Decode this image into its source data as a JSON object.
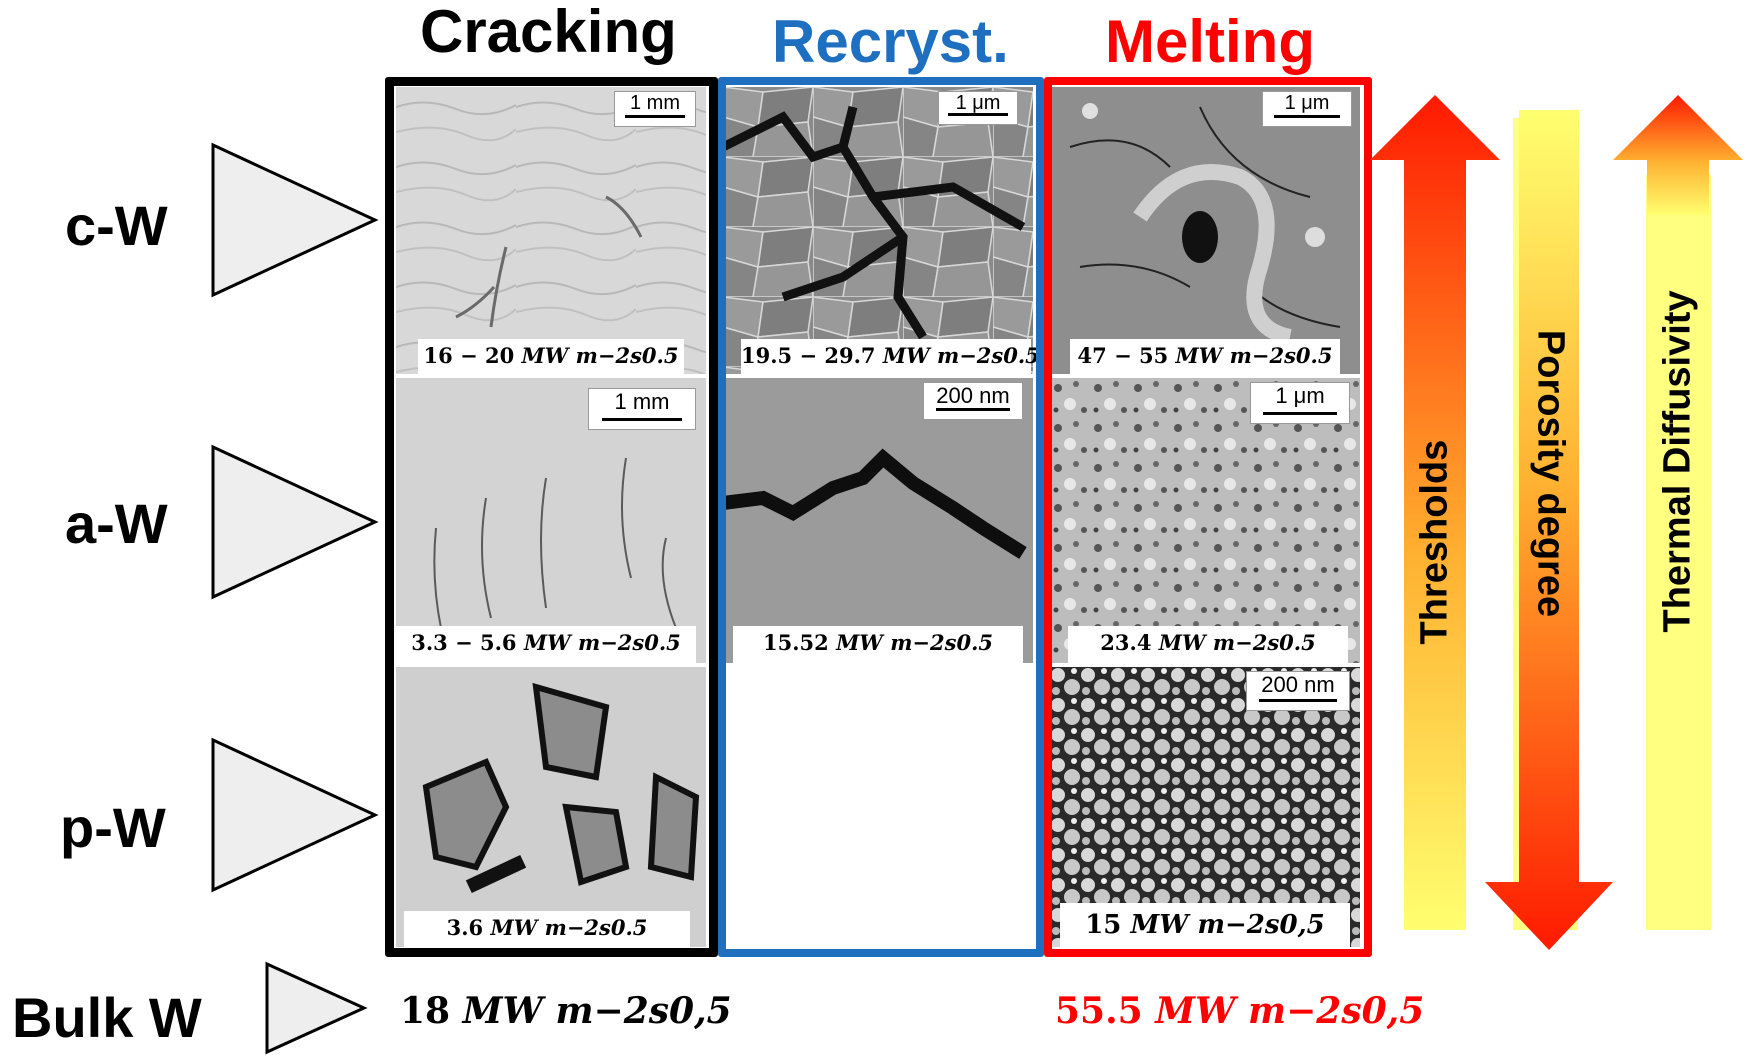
{
  "columns": {
    "cracking": {
      "title": "Cracking",
      "color": "#000000"
    },
    "recryst": {
      "title": "Recryst.",
      "color": "#1f6fc0"
    },
    "melting": {
      "title": "Melting",
      "color": "#ff0000"
    }
  },
  "rows": {
    "cw": {
      "label": "c-W"
    },
    "aw": {
      "label": "a-W"
    },
    "pw": {
      "label": "p-W"
    },
    "bulk": {
      "label": "Bulk W"
    }
  },
  "panels": {
    "cw_cracking": {
      "scale": "1 mm",
      "num": "16 − 20",
      "unit": "MW m−2s0.5"
    },
    "cw_recryst": {
      "scale": "1 μm",
      "num": "19.5 − 29.7",
      "unit": "MW m−2s0.5"
    },
    "cw_melting": {
      "scale": "1 μm",
      "num": "47 − 55",
      "unit": "MW m−2s0.5"
    },
    "aw_cracking": {
      "scale": "1 mm",
      "num": "3.3 − 5.6",
      "unit": "MW m−2s0.5"
    },
    "aw_recryst": {
      "scale": "200 nm",
      "num": "15.52",
      "unit": "MW m−2s0.5"
    },
    "aw_melting": {
      "scale": "1 μm",
      "num": "23.4",
      "unit": "MW m−2s0.5"
    },
    "pw_cracking": {
      "num": "3.6",
      "unit": "MW m−2s0.5"
    },
    "pw_melting": {
      "scale": "200 nm",
      "num": "15",
      "unit": "MW m−2s0,5"
    }
  },
  "bulk": {
    "cracking": {
      "num": "18",
      "unit": "MW m−2s0,5"
    },
    "melting": {
      "num": "55.5",
      "unit": "MW m−2s0,5"
    }
  },
  "arrows": {
    "thresholds": "Thresholds",
    "porosity": "Porosity degree",
    "diffusivity": "Thermal Diffusivity"
  },
  "colors": {
    "accent_red": "#ff0000",
    "accent_blue": "#1f6fc0",
    "arrow_yellow": "#ffff80"
  }
}
